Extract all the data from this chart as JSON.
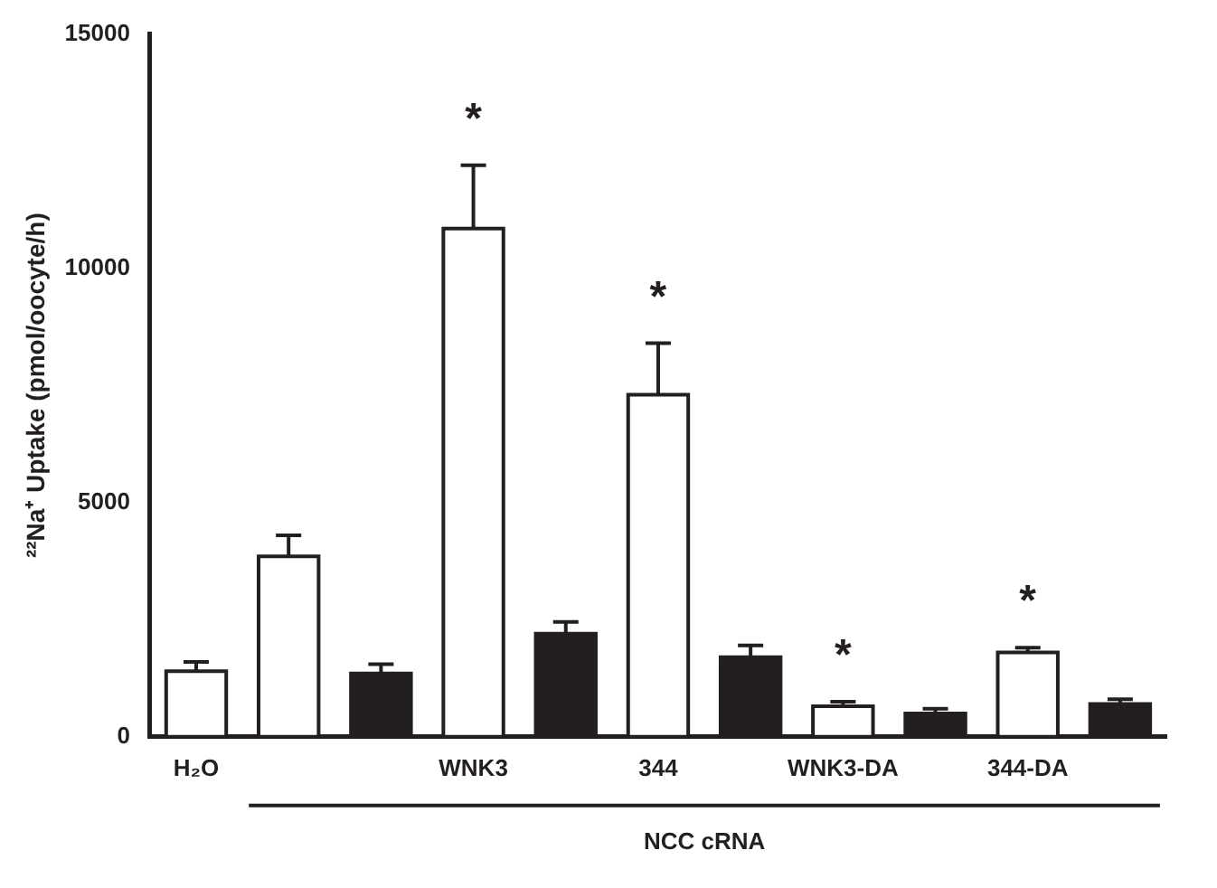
{
  "chart_data": {
    "type": "bar",
    "ylabel": "²²Na⁺ Uptake (pmol/oocyte/h)",
    "categories": [
      "H₂O",
      null,
      null,
      "WNK3",
      null,
      "344",
      null,
      "WNK3-DA",
      null,
      "344-DA",
      null
    ],
    "values": [
      1400,
      3850,
      1350,
      10850,
      2200,
      7300,
      1700,
      650,
      500,
      1800,
      700
    ],
    "colors": [
      "#ffffff",
      "#ffffff",
      "#231f20",
      "#ffffff",
      "#231f20",
      "#ffffff",
      "#231f20",
      "#ffffff",
      "#231f20",
      "#ffffff",
      "#231f20"
    ],
    "errors": [
      [
        1400,
        1600
      ],
      [
        3850,
        4300
      ],
      [
        1350,
        1550
      ],
      [
        10850,
        12200
      ],
      [
        2200,
        2450
      ],
      [
        7300,
        8400
      ],
      [
        1700,
        1950
      ],
      [
        650,
        750
      ],
      [
        500,
        600
      ],
      [
        1800,
        1900
      ],
      [
        700,
        800
      ]
    ],
    "ylim": [
      0,
      15000
    ],
    "yticks": [
      0,
      5000,
      10000,
      15000
    ],
    "grid": false,
    "legend": false,
    "value_labels": [
      null,
      null,
      null,
      "*",
      null,
      "*",
      null,
      "*",
      null,
      "*",
      null
    ],
    "annotations": [
      "NCC cRNA"
    ]
  }
}
